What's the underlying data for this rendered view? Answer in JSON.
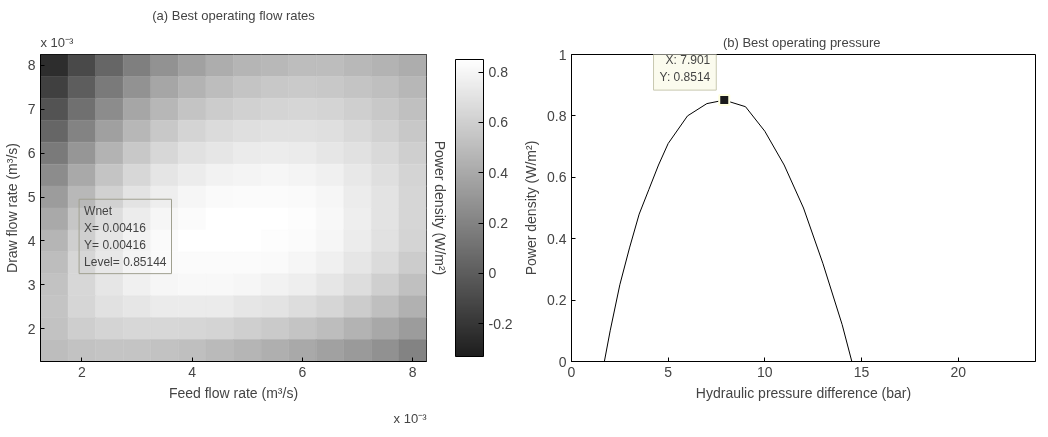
{
  "chart_data": [
    {
      "type": "heatmap",
      "title": "(a) Best operating flow rates",
      "xlabel": "Feed flow rate (m³/s)",
      "ylabel": "Draw flow rate (m³/s)",
      "clabel": "Power density (W/m²)",
      "categories": [
        null,
        "2",
        null,
        null,
        null,
        "4",
        null,
        null,
        null,
        "6",
        null,
        null,
        null,
        "8"
      ],
      "y_categories": [
        "8",
        null,
        "7",
        null,
        "6",
        null,
        "5",
        null,
        "4",
        null,
        "3",
        null,
        "2",
        null
      ],
      "clim": [
        -0.33,
        0.85
      ],
      "cticks": [
        {
          "value": -0.2,
          "label": "-0.2"
        },
        0,
        0.2,
        0.4,
        0.6,
        0.8
      ],
      "colors": [
        "#1e1e1e",
        "#ffffff"
      ],
      "cells": [
        [
          -0.25,
          -0.1,
          0.05,
          0.18,
          0.28,
          0.36,
          0.42,
          0.46,
          0.48,
          0.5,
          0.5,
          0.48,
          0.45,
          0.42
        ],
        [
          -0.15,
          0.0,
          0.15,
          0.28,
          0.38,
          0.45,
          0.5,
          0.54,
          0.56,
          0.57,
          0.56,
          0.54,
          0.51,
          0.47
        ],
        [
          -0.05,
          0.1,
          0.25,
          0.38,
          0.47,
          0.54,
          0.58,
          0.61,
          0.62,
          0.63,
          0.62,
          0.6,
          0.56,
          0.52
        ],
        [
          0.05,
          0.2,
          0.35,
          0.47,
          0.56,
          0.62,
          0.66,
          0.68,
          0.69,
          0.69,
          0.68,
          0.65,
          0.61,
          0.56
        ],
        [
          0.15,
          0.3,
          0.45,
          0.56,
          0.64,
          0.69,
          0.72,
          0.74,
          0.75,
          0.74,
          0.72,
          0.69,
          0.65,
          0.6
        ],
        [
          0.25,
          0.4,
          0.54,
          0.64,
          0.71,
          0.75,
          0.78,
          0.79,
          0.8,
          0.79,
          0.77,
          0.73,
          0.68,
          0.62
        ],
        [
          0.33,
          0.48,
          0.61,
          0.7,
          0.76,
          0.8,
          0.82,
          0.83,
          0.83,
          0.82,
          0.8,
          0.75,
          0.7,
          0.63
        ],
        [
          0.4,
          0.55,
          0.67,
          0.75,
          0.8,
          0.83,
          0.85,
          0.85,
          0.85,
          0.84,
          0.81,
          0.76,
          0.7,
          0.63
        ],
        [
          0.46,
          0.6,
          0.71,
          0.78,
          0.82,
          0.85,
          0.85,
          0.85,
          0.84,
          0.83,
          0.8,
          0.75,
          0.69,
          0.62
        ],
        [
          0.5,
          0.63,
          0.73,
          0.79,
          0.82,
          0.83,
          0.83,
          0.83,
          0.82,
          0.8,
          0.77,
          0.72,
          0.66,
          0.58
        ],
        [
          0.53,
          0.64,
          0.72,
          0.77,
          0.8,
          0.81,
          0.81,
          0.8,
          0.78,
          0.76,
          0.72,
          0.67,
          0.6,
          0.52
        ],
        [
          0.54,
          0.63,
          0.69,
          0.72,
          0.74,
          0.74,
          0.74,
          0.72,
          0.7,
          0.67,
          0.63,
          0.58,
          0.51,
          0.44
        ],
        [
          0.53,
          0.59,
          0.62,
          0.64,
          0.64,
          0.63,
          0.62,
          0.6,
          0.57,
          0.54,
          0.5,
          0.45,
          0.39,
          0.33
        ],
        [
          0.5,
          0.53,
          0.54,
          0.54,
          0.53,
          0.51,
          0.49,
          0.46,
          0.43,
          0.4,
          0.36,
          0.32,
          0.27,
          0.2
        ]
      ],
      "annotations": [
        "x 10⁻³",
        "x 10⁻³",
        "Wnet\nX= 0.00416\nY= 0.00416\nLevel= 0.85144"
      ],
      "grid": false
    },
    {
      "type": "line",
      "title": "(b) Best operating  pressure",
      "xlabel": "Hydraulic pressure difference (bar)",
      "ylabel": "Power density (W/m²)",
      "x": [
        1.7,
        2,
        2.5,
        3,
        3.5,
        4,
        4.5,
        5,
        6,
        7,
        7.901,
        9,
        10,
        11,
        12,
        13,
        14,
        14.5
      ],
      "series": [
        {
          "color": "#000000",
          "values": [
            0,
            0.1,
            0.25,
            0.37,
            0.48,
            0.56,
            0.64,
            0.71,
            0.8,
            0.84,
            0.8514,
            0.83,
            0.75,
            0.64,
            0.5,
            0.32,
            0.12,
            0
          ]
        }
      ],
      "xlim": [
        0,
        24
      ],
      "ylim": [
        0,
        1
      ],
      "xticks": [
        0,
        5,
        10,
        15,
        20
      ],
      "yticks": [
        0,
        0.2,
        0.4,
        0.6,
        0.8,
        1
      ],
      "annotations": [
        {
          "text": "X: 7.901\nY: 0.8514",
          "x": 7.901,
          "y": 0.8514
        }
      ],
      "grid": false
    }
  ]
}
